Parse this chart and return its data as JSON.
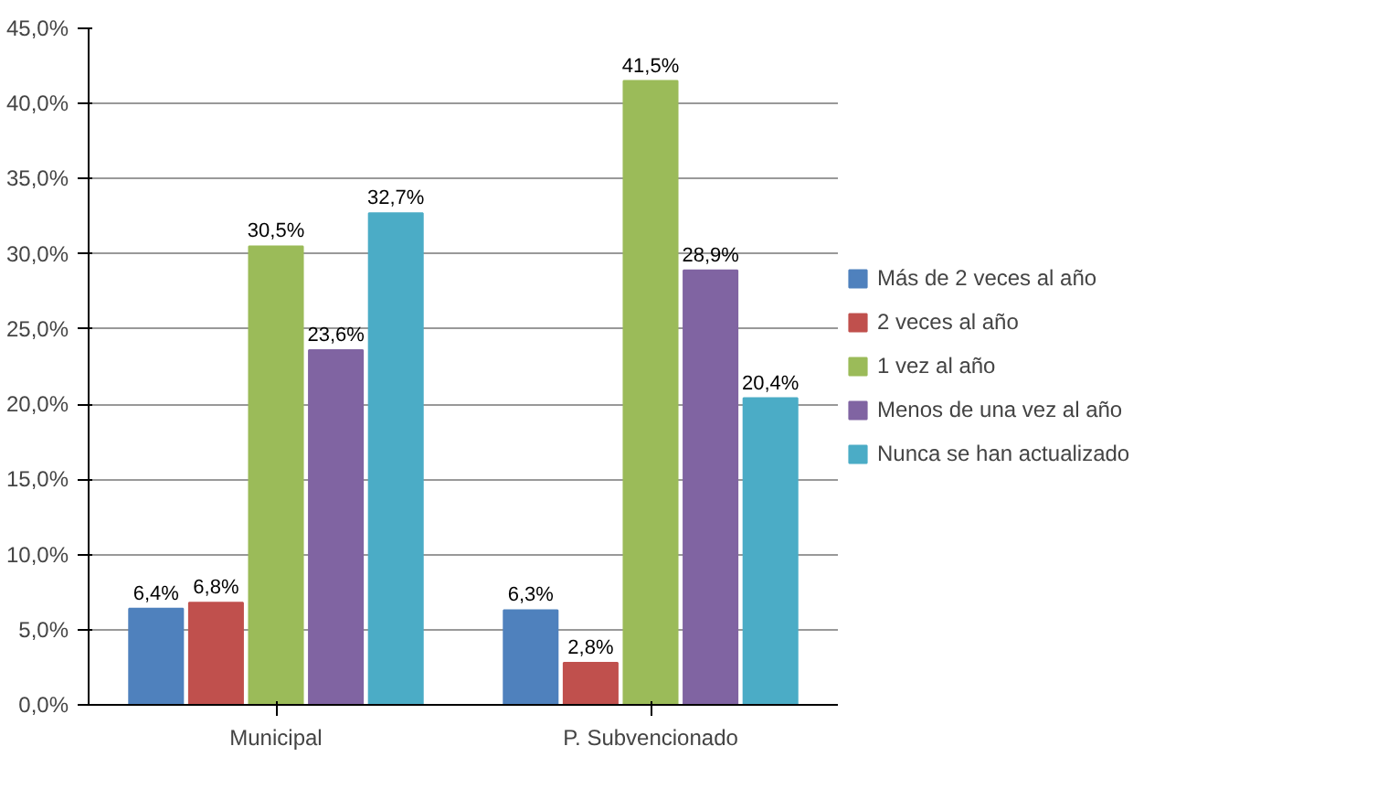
{
  "chart_data": {
    "type": "bar",
    "categories": [
      "Municipal",
      "P. Subvencionado"
    ],
    "series": [
      {
        "name": "Más de 2 veces al año",
        "color": "#4f81bd",
        "values": [
          6.4,
          6.3
        ],
        "value_labels": [
          "6,4%",
          "6,3%"
        ]
      },
      {
        "name": "2 veces al año",
        "color": "#c0504d",
        "values": [
          6.8,
          2.8
        ],
        "value_labels": [
          "6,8%",
          "2,8%"
        ]
      },
      {
        "name": "1 vez al año",
        "color": "#9bbb59",
        "values": [
          30.5,
          41.5
        ],
        "value_labels": [
          "30,5%",
          "41,5%"
        ]
      },
      {
        "name": "Menos de una vez al año",
        "color": "#8064a2",
        "values": [
          23.6,
          28.9
        ],
        "value_labels": [
          "23,6%",
          "28,9%"
        ]
      },
      {
        "name": "Nunca se han actualizado",
        "color": "#4bacc6",
        "values": [
          32.7,
          20.4
        ],
        "value_labels": [
          "32,7%",
          "20,4%"
        ]
      }
    ],
    "ylim": [
      0,
      45
    ],
    "yticks": [
      {
        "value": 0,
        "label": "0,0%"
      },
      {
        "value": 5,
        "label": "5,0%"
      },
      {
        "value": 10,
        "label": "10,0%"
      },
      {
        "value": 15,
        "label": "15,0%"
      },
      {
        "value": 20,
        "label": "20,0%"
      },
      {
        "value": 25,
        "label": "25,0%"
      },
      {
        "value": 30,
        "label": "30,0%"
      },
      {
        "value": 35,
        "label": "35,0%"
      },
      {
        "value": 40,
        "label": "40,0%"
      },
      {
        "value": 45,
        "label": "45,0%"
      }
    ],
    "grid": "y",
    "legend": "right"
  }
}
